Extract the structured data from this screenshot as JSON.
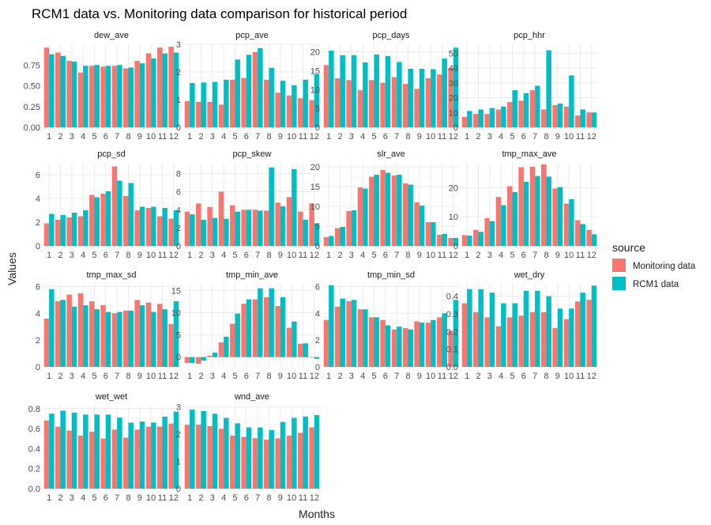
{
  "chart_data": {
    "type": "bar",
    "title": "RCM1 data vs. Monitoring data comparison for historical period",
    "xlabel": "Months",
    "ylabel": "Values",
    "categories": [
      "1",
      "2",
      "3",
      "4",
      "5",
      "6",
      "7",
      "8",
      "9",
      "10",
      "11",
      "12"
    ],
    "legend": {
      "title": "source",
      "position": "right",
      "entries": [
        {
          "name": "Monitoring data",
          "color": "#F8766D"
        },
        {
          "name": "RCM1 data",
          "color": "#00BFC4"
        }
      ]
    },
    "grid": true,
    "facets": [
      {
        "name": "dew_ave",
        "ylim": [
          0,
          1.0
        ],
        "yticks": [
          0,
          0.25,
          0.5,
          0.75
        ],
        "tick_labels": [
          "0.00",
          "0.25",
          "0.50",
          "0.75"
        ],
        "series": [
          {
            "name": "Monitoring data",
            "values": [
              0.96,
              0.9,
              0.8,
              0.66,
              0.74,
              0.73,
              0.74,
              0.71,
              0.8,
              0.89,
              0.96,
              0.97
            ]
          },
          {
            "name": "RCM1 data",
            "values": [
              0.88,
              0.86,
              0.79,
              0.74,
              0.75,
              0.74,
              0.75,
              0.72,
              0.77,
              0.83,
              0.89,
              0.9
            ]
          }
        ]
      },
      {
        "name": "pcp_ave",
        "ylim": [
          0,
          3.0
        ],
        "yticks": [
          0,
          1,
          2,
          3
        ],
        "tick_labels": [
          "0",
          "1",
          "2",
          "3"
        ],
        "series": [
          {
            "name": "Monitoring data",
            "values": [
              0.95,
              0.92,
              0.92,
              0.82,
              1.72,
              1.78,
              2.72,
              1.72,
              1.25,
              1.15,
              1.05,
              0.98
            ]
          },
          {
            "name": "RCM1 data",
            "values": [
              1.6,
              1.62,
              1.64,
              1.72,
              2.45,
              2.62,
              2.86,
              2.15,
              1.68,
              1.52,
              1.72,
              1.92
            ]
          }
        ]
      },
      {
        "name": "pcp_days",
        "ylim": [
          0,
          22.0
        ],
        "yticks": [
          0,
          5,
          10,
          15,
          20
        ],
        "tick_labels": [
          "0",
          "5",
          "10",
          "15",
          "20"
        ],
        "series": [
          {
            "name": "Monitoring data",
            "values": [
              16.5,
              13.0,
              12.5,
              9.8,
              12.5,
              11.8,
              13.3,
              11.5,
              10.2,
              13.0,
              14.0,
              15.7
            ]
          },
          {
            "name": "RCM1 data",
            "values": [
              20.3,
              19.1,
              19.1,
              17.2,
              19.3,
              18.9,
              17.3,
              15.5,
              15.5,
              15.4,
              18.2,
              21.1
            ]
          }
        ]
      },
      {
        "name": "pcp_hhr",
        "ylim": [
          0,
          56.0
        ],
        "yticks": [
          0,
          10,
          20,
          30,
          40,
          50
        ],
        "tick_labels": [
          "0",
          "10",
          "20",
          "30",
          "40",
          "50"
        ],
        "series": [
          {
            "name": "Monitoring data",
            "values": [
              7,
              9,
              9,
              12,
              17,
              18,
              25,
              12,
              15,
              14,
              8,
              10
            ]
          },
          {
            "name": "RCM1 data",
            "values": [
              11,
              12,
              13,
              14,
              25,
              23,
              28,
              52,
              16,
              35,
              12,
              10
            ]
          }
        ]
      },
      {
        "name": "pcp_sd",
        "ylim": [
          0,
          7.0
        ],
        "yticks": [
          0,
          2,
          4,
          6
        ],
        "tick_labels": [
          "0",
          "2",
          "4",
          "6"
        ],
        "series": [
          {
            "name": "Monitoring data",
            "values": [
              1.9,
              2.2,
              2.4,
              2.5,
              4.3,
              4.4,
              6.7,
              4.2,
              3.0,
              3.2,
              2.5,
              2.3
            ]
          },
          {
            "name": "RCM1 data",
            "values": [
              2.7,
              2.6,
              2.8,
              3.0,
              4.1,
              4.6,
              5.5,
              5.3,
              3.3,
              3.3,
              3.2,
              3.0
            ]
          }
        ]
      },
      {
        "name": "pcp_skew",
        "ylim": [
          0,
          9.2
        ],
        "yticks": [
          0,
          2,
          4,
          6,
          8
        ],
        "tick_labels": [
          "0",
          "2",
          "4",
          "6",
          "8"
        ],
        "series": [
          {
            "name": "Monitoring data",
            "values": [
              3.8,
              4.7,
              4.3,
              6.0,
              4.5,
              4.0,
              4.0,
              3.9,
              4.8,
              5.4,
              3.8,
              4.7
            ]
          },
          {
            "name": "RCM1 data",
            "values": [
              3.5,
              2.9,
              3.1,
              3.0,
              3.8,
              4.0,
              3.9,
              8.7,
              4.4,
              8.5,
              2.9,
              2.5
            ]
          }
        ]
      },
      {
        "name": "slr_ave",
        "ylim": [
          0,
          21.0
        ],
        "yticks": [
          0,
          5,
          10,
          15,
          20
        ],
        "tick_labels": [
          "0",
          "5",
          "10",
          "15",
          "20"
        ],
        "series": [
          {
            "name": "Monitoring data",
            "values": [
              2.2,
              4.5,
              8.8,
              14.8,
              17.5,
              19.2,
              17.8,
              15.8,
              11.0,
              6.0,
              2.8,
              2.0
            ]
          },
          {
            "name": "RCM1 data",
            "values": [
              2.5,
              4.8,
              9.0,
              14.5,
              18.0,
              18.5,
              18.0,
              15.5,
              10.2,
              6.0,
              3.0,
              2.0
            ]
          }
        ]
      },
      {
        "name": "tmp_max_ave",
        "ylim": [
          0,
          28.5
        ],
        "yticks": [
          0,
          10,
          20
        ],
        "tick_labels": [
          "0",
          "10",
          "20"
        ],
        "series": [
          {
            "name": "Monitoring data",
            "values": [
              3.7,
              5.5,
              9.5,
              16.8,
              20.5,
              27.0,
              27.2,
              28.0,
              19.7,
              14.5,
              8.8,
              5.5
            ]
          },
          {
            "name": "RCM1 data",
            "values": [
              3.5,
              4.8,
              8.5,
              14.0,
              18.5,
              22.0,
              24.0,
              23.8,
              20.2,
              16.0,
              7.5,
              4.0
            ]
          }
        ]
      },
      {
        "name": "tmp_max_sd",
        "ylim": [
          0,
          6.2
        ],
        "yticks": [
          0,
          2,
          4,
          6
        ],
        "tick_labels": [
          "0",
          "2",
          "4",
          "6"
        ],
        "series": [
          {
            "name": "Monitoring data",
            "values": [
              3.6,
              4.9,
              5.4,
              5.5,
              4.9,
              4.6,
              4.0,
              4.2,
              5.0,
              4.8,
              4.7,
              3.2
            ]
          },
          {
            "name": "RCM1 data",
            "values": [
              5.8,
              5.0,
              4.5,
              4.6,
              4.3,
              4.1,
              4.1,
              4.2,
              4.6,
              4.1,
              4.3,
              4.9
            ]
          }
        ]
      },
      {
        "name": "tmp_min_ave",
        "ylim": [
          -2.2,
          16.5
        ],
        "yticks": [
          0,
          5,
          10,
          15
        ],
        "tick_labels": [
          "0",
          "5",
          "10",
          "15"
        ],
        "series": [
          {
            "name": "Monitoring data",
            "values": [
              -1.3,
              -1.5,
              0.3,
              3.3,
              7.5,
              12.0,
              13.0,
              13.5,
              11.5,
              6.6,
              3.0,
              -0.1
            ]
          },
          {
            "name": "RCM1 data",
            "values": [
              -1.3,
              -0.8,
              1.0,
              4.6,
              9.8,
              13.0,
              15.5,
              15.5,
              13.5,
              8.0,
              3.1,
              -0.4
            ]
          }
        ]
      },
      {
        "name": "tmp_min_sd",
        "ylim": [
          0,
          6.2
        ],
        "yticks": [
          0,
          2,
          4,
          6
        ],
        "tick_labels": [
          "0",
          "2",
          "4",
          "6"
        ],
        "series": [
          {
            "name": "Monitoring data",
            "values": [
              3.5,
              4.5,
              4.9,
              4.3,
              3.7,
              3.5,
              2.8,
              2.9,
              3.4,
              3.3,
              3.7,
              2.7
            ]
          },
          {
            "name": "RCM1 data",
            "values": [
              6.1,
              5.1,
              5.0,
              4.3,
              3.7,
              3.1,
              3.0,
              2.8,
              3.3,
              3.5,
              4.0,
              5.0
            ]
          }
        ]
      },
      {
        "name": "wet_dry",
        "ylim": [
          0,
          0.47
        ],
        "yticks": [
          0,
          0.1,
          0.2,
          0.3,
          0.4
        ],
        "tick_labels": [
          "0.0",
          "0.1",
          "0.2",
          "0.3",
          "0.4"
        ],
        "series": [
          {
            "name": "Monitoring data",
            "values": [
              0.36,
              0.31,
              0.28,
              0.23,
              0.28,
              0.29,
              0.31,
              0.31,
              0.22,
              0.27,
              0.37,
              0.38
            ]
          },
          {
            "name": "RCM1 data",
            "values": [
              0.44,
              0.44,
              0.42,
              0.36,
              0.36,
              0.43,
              0.43,
              0.4,
              0.33,
              0.33,
              0.42,
              0.46
            ]
          }
        ]
      },
      {
        "name": "wet_wet",
        "ylim": [
          0,
          0.83
        ],
        "yticks": [
          0,
          0.2,
          0.4,
          0.6,
          0.8
        ],
        "tick_labels": [
          "0.0",
          "0.2",
          "0.4",
          "0.6",
          "0.8"
        ],
        "series": [
          {
            "name": "Monitoring data",
            "values": [
              0.68,
              0.62,
              0.58,
              0.53,
              0.57,
              0.5,
              0.59,
              0.51,
              0.59,
              0.62,
              0.62,
              0.65
            ]
          },
          {
            "name": "RCM1 data",
            "values": [
              0.75,
              0.78,
              0.76,
              0.74,
              0.74,
              0.74,
              0.71,
              0.66,
              0.67,
              0.66,
              0.72,
              0.77
            ]
          }
        ]
      },
      {
        "name": "wnd_ave",
        "ylim": [
          0,
          3.05
        ],
        "yticks": [
          0,
          1,
          2,
          3
        ],
        "tick_labels": [
          "0",
          "1",
          "2",
          "3"
        ],
        "series": [
          {
            "name": "Monitoring data",
            "values": [
              2.35,
              2.35,
              2.3,
              2.2,
              1.95,
              1.9,
              1.85,
              1.8,
              1.85,
              1.95,
              2.05,
              2.25
            ]
          },
          {
            "name": "RCM1 data",
            "values": [
              2.9,
              2.85,
              2.75,
              2.6,
              2.4,
              2.25,
              2.25,
              2.15,
              2.45,
              2.6,
              2.65,
              2.7
            ]
          }
        ]
      }
    ]
  }
}
